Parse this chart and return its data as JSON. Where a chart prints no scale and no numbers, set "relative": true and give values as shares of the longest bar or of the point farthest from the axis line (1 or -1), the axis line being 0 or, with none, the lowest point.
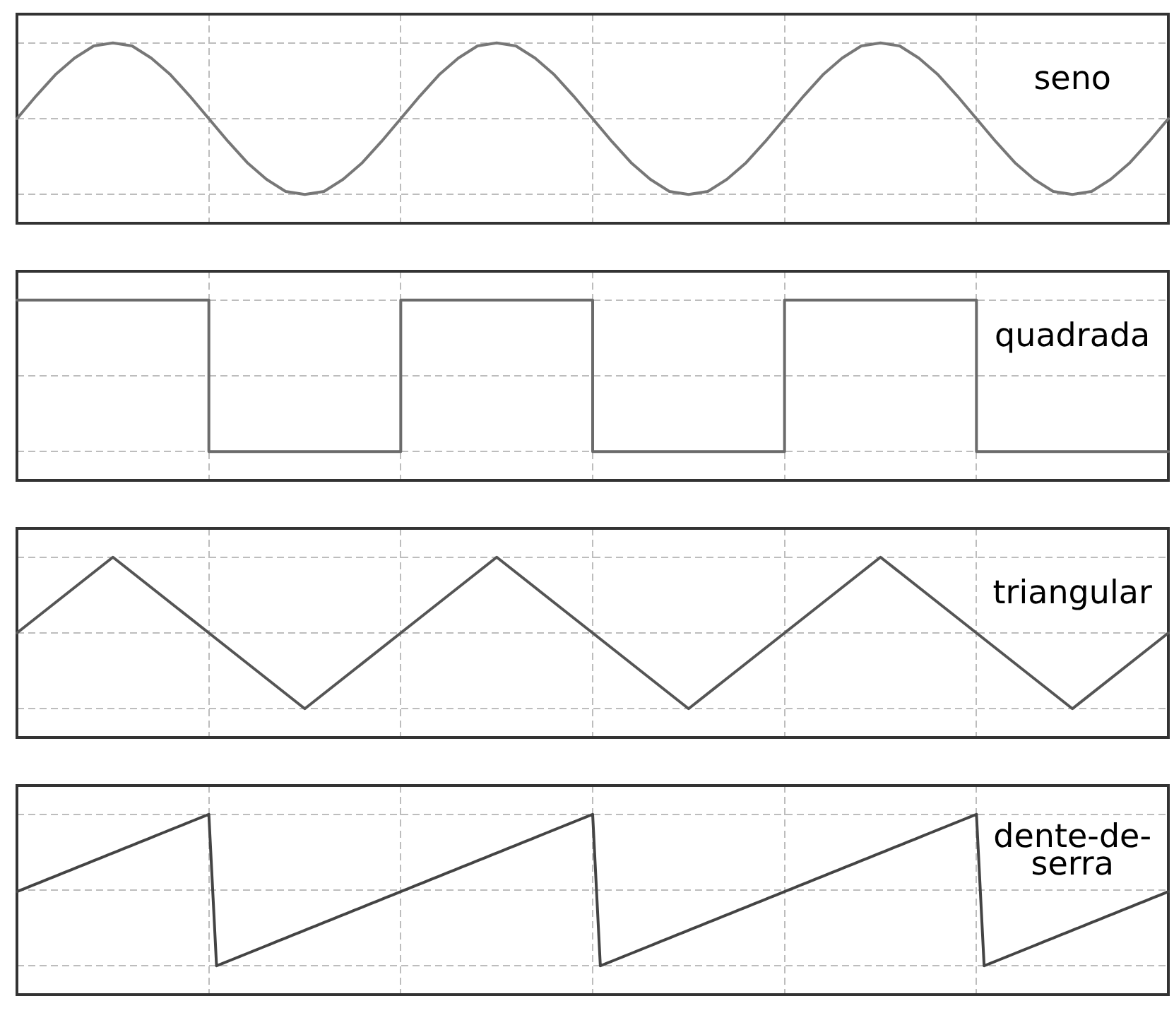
{
  "chart_data": [
    {
      "type": "line",
      "categories": [
        null,
        null,
        null,
        null,
        null,
        null,
        null,
        null,
        null,
        null,
        null,
        null,
        null,
        null,
        null,
        null,
        null,
        null,
        null,
        null,
        null,
        null,
        null,
        null,
        null,
        null,
        null,
        null,
        null,
        null,
        null,
        null,
        null,
        null,
        null,
        null,
        null,
        null,
        null,
        null,
        null,
        null,
        null,
        null,
        null,
        null,
        null,
        null,
        null,
        null,
        null,
        null,
        null,
        null,
        null,
        null,
        null,
        null,
        null,
        null,
        null
      ],
      "series": [
        {
          "name": "seno",
          "color": "#777777",
          "values": [
            0.5,
            0.65,
            0.79,
            0.9,
            0.98,
            1,
            0.98,
            0.9,
            0.79,
            0.65,
            0.5,
            0.35,
            0.21,
            0.1,
            0.02,
            0,
            0.02,
            0.1,
            0.21,
            0.35,
            0.5,
            0.65,
            0.79,
            0.9,
            0.98,
            1,
            0.98,
            0.9,
            0.79,
            0.65,
            0.5,
            0.35,
            0.21,
            0.1,
            0.02,
            0,
            0.02,
            0.1,
            0.21,
            0.35,
            0.5,
            0.65,
            0.79,
            0.9,
            0.98,
            1,
            0.98,
            0.9,
            0.79,
            0.65,
            0.5,
            0.35,
            0.21,
            0.1,
            0.02,
            0,
            0.02,
            0.1,
            0.21,
            0.35,
            0.5
          ]
        }
      ],
      "relative": true,
      "grid": true
    },
    {
      "type": "step",
      "categories": [
        null,
        null,
        null,
        null,
        null,
        null,
        null
      ],
      "series": [
        {
          "name": "quadrada",
          "color": "#6b6b6b",
          "values": [
            1,
            0,
            1,
            0,
            1,
            0,
            0
          ]
        }
      ],
      "relative": true,
      "grid": true
    },
    {
      "type": "line",
      "categories": [
        null,
        null,
        null,
        null,
        null,
        null,
        null,
        null,
        null,
        null,
        null,
        null,
        null
      ],
      "series": [
        {
          "name": "triangular",
          "color": "#555555",
          "values": [
            0.5,
            1,
            0.5,
            0,
            0.5,
            1,
            0.5,
            0,
            0.5,
            1,
            0.5,
            0,
            0.5
          ]
        }
      ],
      "relative": true,
      "grid": true
    },
    {
      "type": "line",
      "categories": [
        null,
        null,
        null,
        null,
        null,
        null,
        null,
        null,
        null,
        null,
        null,
        null,
        null,
        null,
        null,
        null,
        null,
        null,
        null,
        null,
        null,
        null,
        null,
        null,
        null,
        null,
        null,
        null,
        null,
        null,
        null,
        null,
        null,
        null,
        null,
        null,
        null,
        null,
        null,
        null,
        null,
        null,
        null,
        null,
        null,
        null,
        null,
        null,
        null,
        null,
        null,
        null,
        null,
        null,
        null,
        null,
        null,
        null,
        null,
        null,
        null,
        null,
        null,
        null,
        null,
        null,
        null,
        null,
        null,
        null,
        null,
        null,
        null,
        null,
        null,
        null,
        null,
        null,
        null,
        null,
        null,
        null,
        null,
        null,
        null,
        null,
        null,
        null,
        null,
        null,
        null,
        null,
        null,
        null,
        null,
        null,
        null,
        null,
        null,
        null,
        null,
        null,
        null,
        null,
        null,
        null,
        null,
        null,
        null,
        null,
        null,
        null,
        null,
        null,
        null,
        null,
        null,
        null,
        null,
        null,
        null,
        null,
        null,
        null,
        null,
        null,
        null,
        null,
        null,
        null,
        null,
        null,
        null,
        null,
        null,
        null,
        null,
        null,
        null,
        null,
        null,
        null,
        null,
        null,
        null,
        null,
        null,
        null,
        null,
        null,
        null
      ],
      "series": [
        {
          "name": "dente-de-serra",
          "color": "#444444",
          "values": [
            0.5,
            0.52,
            0.54,
            0.56,
            0.58,
            0.6,
            0.62,
            0.64,
            0.66,
            0.68,
            0.7,
            0.72,
            0.74,
            0.76,
            0.78,
            0.8,
            0.82,
            0.84,
            0.86,
            0.88,
            0.9,
            0.92,
            0.94,
            0.96,
            0.98,
            1,
            0.02,
            0.04,
            0.06,
            0.08,
            0.1,
            0.12,
            0.14,
            0.16,
            0.18,
            0.2,
            0.22,
            0.24,
            0.26,
            0.28,
            0.3,
            0.32,
            0.34,
            0.36,
            0.38,
            0.4,
            0.42,
            0.44,
            0.46,
            0.48,
            0.5,
            0.52,
            0.54,
            0.56,
            0.58,
            0.6,
            0.62,
            0.64,
            0.66,
            0.68,
            0.7,
            0.72,
            0.74,
            0.76,
            0.78,
            0.8,
            0.82,
            0.84,
            0.86,
            0.88,
            0.9,
            0.92,
            0.94,
            0.96,
            0.98,
            1,
            0.02,
            0.04,
            0.06,
            0.08,
            0.1,
            0.12,
            0.14,
            0.16,
            0.18,
            0.2,
            0.22,
            0.24,
            0.26,
            0.28,
            0.3,
            0.32,
            0.34,
            0.36,
            0.38,
            0.4,
            0.42,
            0.44,
            0.46,
            0.48,
            0.5,
            0.52,
            0.54,
            0.56,
            0.58,
            0.6,
            0.62,
            0.64,
            0.66,
            0.68,
            0.7,
            0.72,
            0.74,
            0.76,
            0.78,
            0.8,
            0.82,
            0.84,
            0.86,
            0.88,
            0.9,
            0.92,
            0.94,
            0.96,
            0.98,
            1,
            0.02,
            0.04,
            0.06,
            0.08,
            0.1,
            0.12,
            0.14,
            0.16,
            0.18,
            0.2,
            0.22,
            0.24,
            0.26,
            0.28,
            0.3,
            0.32,
            0.34,
            0.36,
            0.38,
            0.4,
            0.42,
            0.44,
            0.46,
            0.48,
            0.5
          ]
        }
      ],
      "relative": true,
      "grid": true
    }
  ]
}
